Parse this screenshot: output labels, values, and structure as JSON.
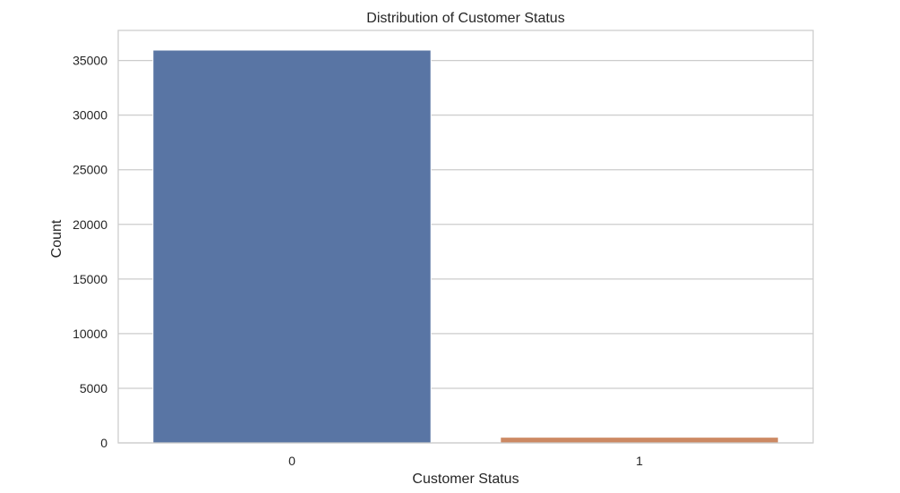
{
  "chart_data": {
    "type": "bar",
    "title": "Distribution of Customer Status",
    "xlabel": "Customer Status",
    "ylabel": "Count",
    "categories": [
      "0",
      "1"
    ],
    "values": [
      35950,
      520
    ],
    "ylim": [
      0,
      37750
    ],
    "yticks": [
      0,
      5000,
      10000,
      15000,
      20000,
      25000,
      30000,
      35000
    ],
    "grid": true,
    "colors": [
      "#5975a4",
      "#cc8963"
    ]
  }
}
